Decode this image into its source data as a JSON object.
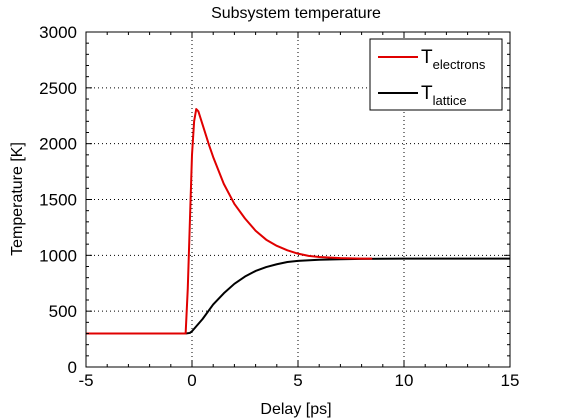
{
  "chart_data": {
    "type": "line",
    "title": "Subsystem temperature",
    "xlabel": "Delay [ps]",
    "ylabel": "Temperature [K]",
    "xlim": [
      -5,
      15
    ],
    "ylim": [
      0,
      3000
    ],
    "x_ticks": [
      "-5",
      "0",
      "5",
      "10",
      "15"
    ],
    "y_ticks": [
      "0",
      "500",
      "1000",
      "1500",
      "2000",
      "2500",
      "3000"
    ],
    "grid": true,
    "legend_position": "top-right",
    "series": [
      {
        "name_main": "T",
        "name_sub": "electrons",
        "color": "#e00000",
        "x": [
          -5,
          -0.5,
          -0.3,
          -0.2,
          -0.1,
          0,
          0.1,
          0.2,
          0.3,
          0.5,
          0.8,
          1,
          1.5,
          2,
          2.5,
          3,
          3.5,
          4,
          4.5,
          5,
          5.5,
          6,
          7,
          8,
          8.5
        ],
        "y": [
          300,
          300,
          300,
          700,
          1300,
          1900,
          2200,
          2310,
          2290,
          2170,
          1990,
          1880,
          1640,
          1460,
          1330,
          1220,
          1140,
          1085,
          1045,
          1015,
          995,
          985,
          975,
          970,
          970
        ]
      },
      {
        "name_main": "T",
        "name_sub": "lattice",
        "color": "#000000",
        "x": [
          -5,
          -0.3,
          -0.1,
          0,
          0.5,
          1,
          1.5,
          2,
          2.5,
          3,
          3.5,
          4,
          4.5,
          5,
          6,
          7,
          8,
          10,
          15
        ],
        "y": [
          300,
          300,
          305,
          320,
          430,
          560,
          660,
          745,
          810,
          860,
          895,
          920,
          940,
          950,
          960,
          965,
          968,
          970,
          970
        ]
      }
    ]
  }
}
